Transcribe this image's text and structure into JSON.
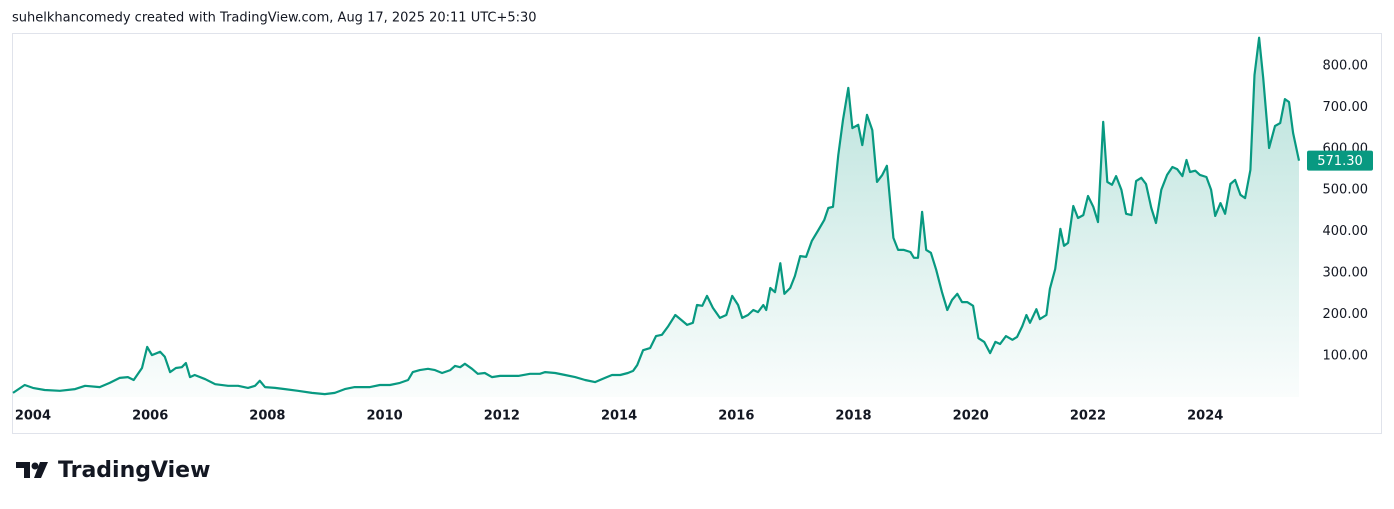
{
  "header": "suhelkhancomedy created with TradingView.com, Aug 17, 2025 20:11 UTC+5:30",
  "brand": "TradingView",
  "chart_data": {
    "type": "line",
    "x": [
      2003.66,
      2003.86,
      2004.0,
      2004.2,
      2004.46,
      2004.72,
      2004.89,
      2005.14,
      2005.31,
      2005.48,
      2005.62,
      2005.72,
      2005.86,
      2005.95,
      2006.03,
      2006.17,
      2006.25,
      2006.34,
      2006.44,
      2006.54,
      2006.61,
      2006.68,
      2006.76,
      2006.94,
      2007.11,
      2007.33,
      2007.5,
      2007.67,
      2007.79,
      2007.87,
      2007.96,
      2008.13,
      2008.3,
      2008.52,
      2008.76,
      2008.98,
      2009.15,
      2009.32,
      2009.49,
      2009.75,
      2009.92,
      2010.09,
      2010.26,
      2010.4,
      2010.48,
      2010.6,
      2010.74,
      2010.86,
      2010.98,
      2011.12,
      2011.2,
      2011.29,
      2011.37,
      2011.49,
      2011.59,
      2011.71,
      2011.83,
      2011.97,
      2012.11,
      2012.28,
      2012.48,
      2012.65,
      2012.74,
      2012.91,
      2013.08,
      2013.25,
      2013.42,
      2013.59,
      2013.76,
      2013.88,
      2014.02,
      2014.15,
      2014.24,
      2014.31,
      2014.41,
      2014.53,
      2014.63,
      2014.73,
      2014.84,
      2014.96,
      2015.06,
      2015.16,
      2015.26,
      2015.33,
      2015.42,
      2015.5,
      2015.6,
      2015.72,
      2015.83,
      2015.93,
      2016.03,
      2016.1,
      2016.2,
      2016.29,
      2016.37,
      2016.46,
      2016.51,
      2016.58,
      2016.66,
      2016.75,
      2016.82,
      2016.92,
      2017.0,
      2017.09,
      2017.19,
      2017.29,
      2017.4,
      2017.5,
      2017.57,
      2017.65,
      2017.74,
      2017.82,
      2017.91,
      2017.98,
      2018.08,
      2018.15,
      2018.23,
      2018.32,
      2018.4,
      2018.49,
      2018.57,
      2018.68,
      2018.76,
      2018.86,
      2018.97,
      2019.03,
      2019.1,
      2019.17,
      2019.24,
      2019.32,
      2019.41,
      2019.51,
      2019.6,
      2019.68,
      2019.77,
      2019.85,
      2019.94,
      2020.04,
      2020.13,
      2020.23,
      2020.33,
      2020.42,
      2020.5,
      2020.6,
      2020.71,
      2020.79,
      2020.88,
      2020.95,
      2021.01,
      2021.12,
      2021.18,
      2021.29,
      2021.35,
      2021.44,
      2021.53,
      2021.59,
      2021.66,
      2021.75,
      2021.83,
      2021.92,
      2022.0,
      2022.09,
      2022.17,
      2022.26,
      2022.33,
      2022.41,
      2022.48,
      2022.57,
      2022.65,
      2022.74,
      2022.82,
      2022.91,
      2022.99,
      2023.08,
      2023.16,
      2023.25,
      2023.35,
      2023.44,
      2023.52,
      2023.61,
      2023.68,
      2023.74,
      2023.83,
      2023.91,
      2024.02,
      2024.1,
      2024.17,
      2024.26,
      2024.34,
      2024.43,
      2024.51,
      2024.6,
      2024.68,
      2024.77,
      2024.84,
      2024.92,
      2024.99,
      2025.09,
      2025.19,
      2025.28,
      2025.36,
      2025.43,
      2025.5,
      2025.6
    ],
    "values": [
      11,
      30,
      23,
      18,
      16,
      20,
      28,
      25,
      35,
      47,
      49,
      42,
      71,
      122,
      102,
      110,
      98,
      61,
      71,
      73,
      83,
      49,
      54,
      44,
      32,
      28,
      28,
      23,
      28,
      40,
      25,
      23,
      20,
      16,
      11,
      8,
      11,
      20,
      25,
      25,
      30,
      30,
      35,
      42,
      61,
      66,
      69,
      66,
      59,
      66,
      76,
      73,
      81,
      69,
      57,
      59,
      49,
      52,
      52,
      52,
      57,
      57,
      61,
      59,
      54,
      49,
      42,
      37,
      47,
      54,
      54,
      59,
      64,
      78,
      114,
      119,
      148,
      151,
      172,
      199,
      187,
      175,
      180,
      223,
      221,
      245,
      216,
      192,
      199,
      245,
      223,
      192,
      199,
      211,
      206,
      223,
      211,
      264,
      254,
      324,
      250,
      264,
      293,
      341,
      339,
      378,
      404,
      428,
      457,
      460,
      585,
      670,
      747,
      650,
      658,
      609,
      682,
      645,
      520,
      537,
      559,
      385,
      356,
      356,
      351,
      337,
      337,
      448,
      356,
      349,
      308,
      254,
      211,
      235,
      250,
      230,
      230,
      221,
      143,
      134,
      107,
      134,
      129,
      148,
      139,
      146,
      172,
      199,
      180,
      213,
      189,
      199,
      262,
      310,
      407,
      366,
      373,
      462,
      433,
      440,
      486,
      460,
      423,
      665,
      520,
      513,
      534,
      501,
      443,
      440,
      522,
      530,
      515,
      457,
      421,
      501,
      537,
      556,
      551,
      534,
      573,
      544,
      547,
      537,
      532,
      501,
      438,
      469,
      443,
      515,
      525,
      489,
      481,
      549,
      778,
      868,
      771,
      602,
      655,
      662,
      720,
      713,
      638,
      571.3
    ],
    "color": "#089981",
    "last_price": {
      "value": 571.3,
      "label": "571.30"
    },
    "xlim": [
      2003.66,
      2025.6
    ],
    "xticks": [
      2004,
      2006,
      2008,
      2010,
      2012,
      2014,
      2016,
      2018,
      2020,
      2022,
      2024
    ],
    "ylim": [
      1,
      877
    ],
    "yticks": [
      {
        "value": 100,
        "label": "100.00"
      },
      {
        "value": 200,
        "label": "200.00"
      },
      {
        "value": 300,
        "label": "300.00"
      },
      {
        "value": 400,
        "label": "400.00"
      },
      {
        "value": 500,
        "label": "500.00"
      },
      {
        "value": 600,
        "label": "600.00"
      },
      {
        "value": 700,
        "label": "700.00"
      },
      {
        "value": 800,
        "label": "800.00"
      }
    ]
  }
}
